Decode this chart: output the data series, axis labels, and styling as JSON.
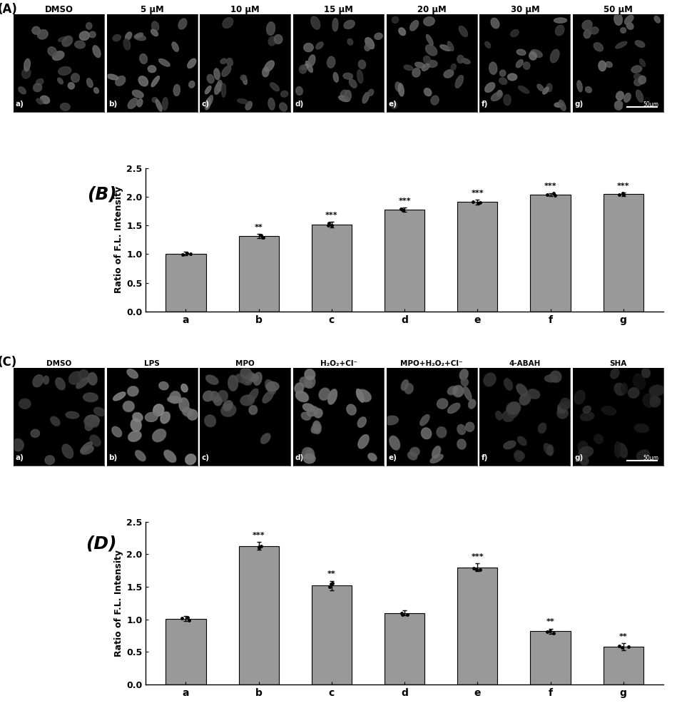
{
  "panel_A_label": "(A)",
  "panel_B_label": "(B)",
  "panel_C_label": "(C)",
  "panel_D_label": "(D)",
  "panel_A_titles": [
    "DMSO",
    "5 μM",
    "10 μM",
    "15 μM",
    "20 μM",
    "30 μM",
    "50 μM"
  ],
  "panel_A_sublabels": [
    "a)",
    "b)",
    "c)",
    "d)",
    "e)",
    "f)",
    "g)"
  ],
  "panel_C_titles": [
    "DMSO",
    "LPS",
    "MPO",
    "H₂O₂+Cl⁻",
    "MPO+H₂O₂+Cl⁻",
    "4-ABAH",
    "SHA"
  ],
  "panel_C_sublabels": [
    "a)",
    "b)",
    "c)",
    "d)",
    "e)",
    "f)",
    "g)"
  ],
  "bar_B_values": [
    1.01,
    1.32,
    1.52,
    1.78,
    1.91,
    2.04,
    2.05
  ],
  "bar_B_errors": [
    0.03,
    0.04,
    0.05,
    0.04,
    0.04,
    0.03,
    0.03
  ],
  "bar_B_sig": [
    "",
    "**",
    "***",
    "***",
    "***",
    "***",
    "***"
  ],
  "bar_D_values": [
    1.01,
    2.13,
    1.52,
    1.1,
    1.8,
    0.82,
    0.58
  ],
  "bar_D_errors": [
    0.04,
    0.06,
    0.07,
    0.04,
    0.06,
    0.04,
    0.05
  ],
  "bar_D_sig": [
    "",
    "***",
    "**",
    "",
    "***",
    "**",
    "**"
  ],
  "bar_x_labels": [
    "a",
    "b",
    "c",
    "d",
    "e",
    "f",
    "g"
  ],
  "ylabel": "Ratio of F.L. Intensity",
  "ylim": [
    0.0,
    2.5
  ],
  "yticks": [
    0.0,
    0.5,
    1.0,
    1.5,
    2.0,
    2.5
  ],
  "bar_color": "#999999",
  "bar_edge_color": "#000000",
  "background_color": "#ffffff",
  "scale_bar_text": "50μm",
  "data_dot_color": "#000000"
}
